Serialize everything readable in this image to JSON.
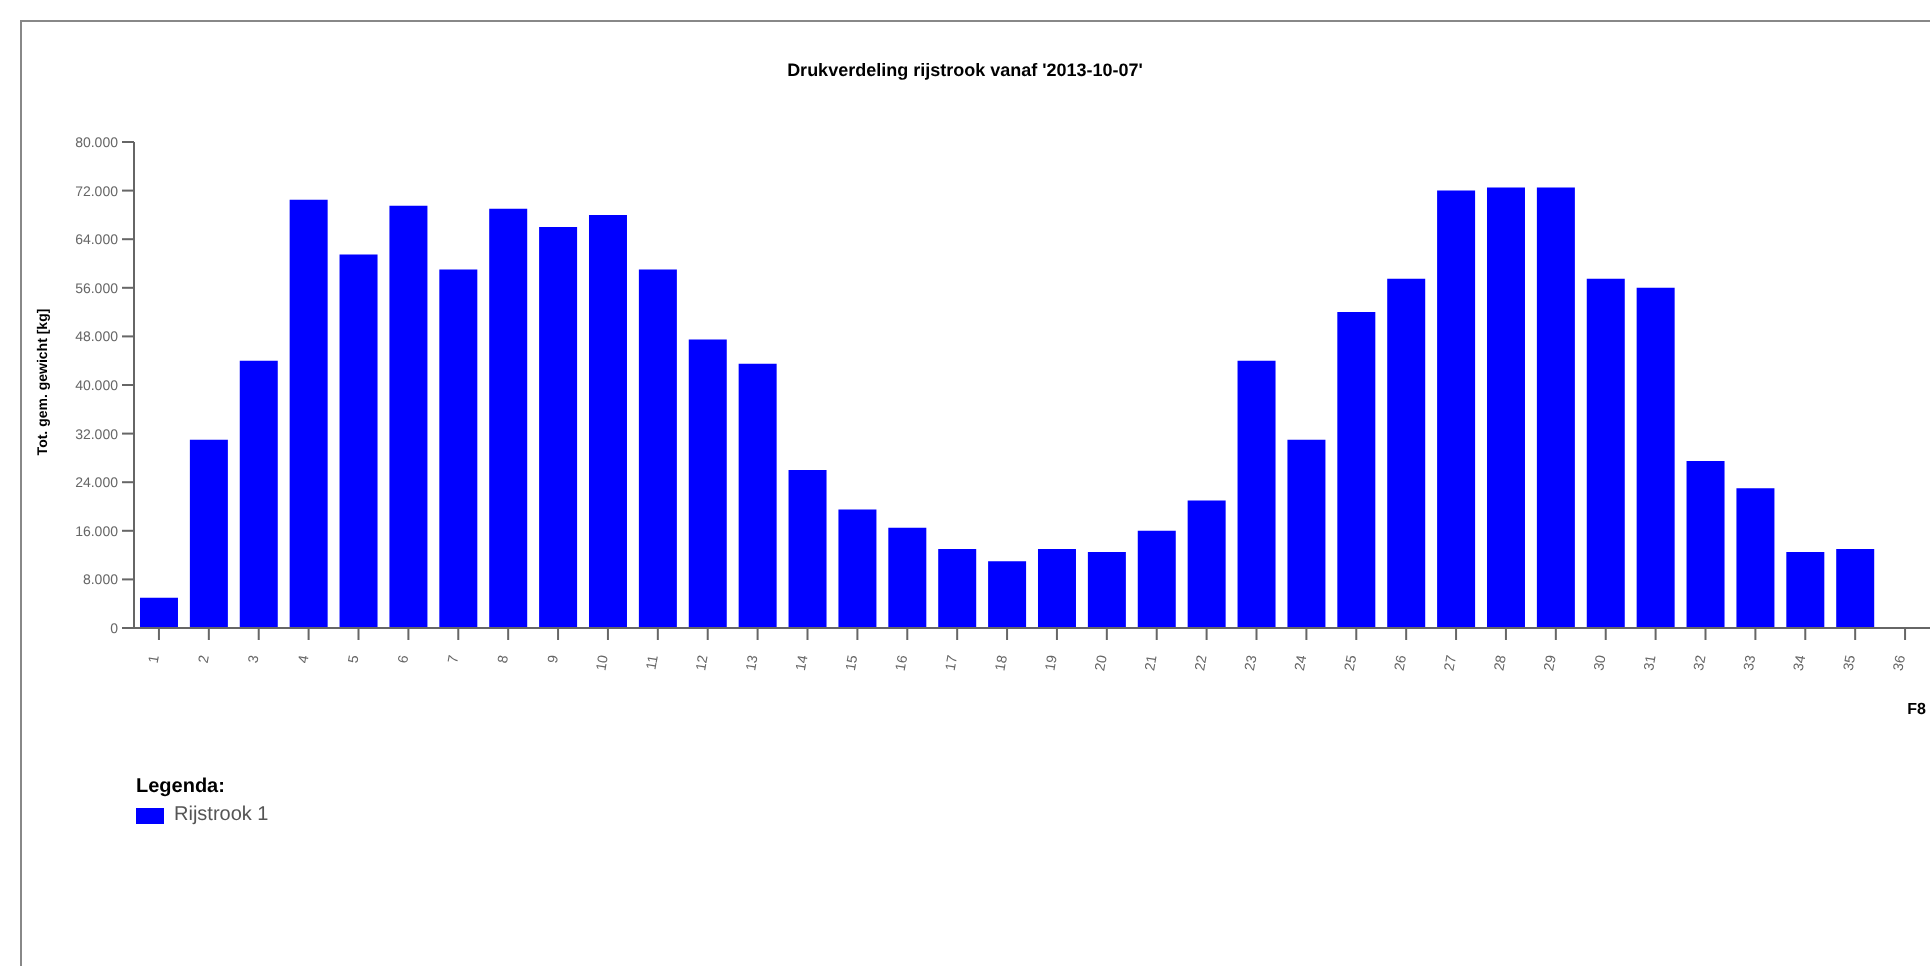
{
  "chart_data": {
    "type": "bar",
    "title": "Drukverdeling rijstrook vanaf '2013-10-07'",
    "ylabel": "Tot. gem. gewicht [kg]",
    "legend_title": "Legenda:",
    "annotations": [
      "F8"
    ],
    "categories": [
      "1",
      "2",
      "3",
      "4",
      "5",
      "6",
      "7",
      "8",
      "9",
      "10",
      "11",
      "12",
      "13",
      "14",
      "15",
      "16",
      "17",
      "18",
      "19",
      "20",
      "21",
      "22",
      "23",
      "24",
      "25",
      "26",
      "27",
      "28",
      "29",
      "30",
      "31",
      "32",
      "33",
      "34",
      "35",
      "36"
    ],
    "series": [
      {
        "name": "Rijstrook 1",
        "color": "#0000ff",
        "values": [
          5000,
          31000,
          44000,
          70500,
          61500,
          69500,
          59000,
          69000,
          66000,
          68000,
          59000,
          47500,
          43500,
          26000,
          19500,
          16500,
          13000,
          11000,
          13000,
          12500,
          16000,
          21000,
          44000,
          31000,
          52000,
          57500,
          72000,
          72500,
          72500,
          57500,
          56000,
          27500,
          23000,
          12500,
          13000,
          null
        ]
      }
    ],
    "ylim": [
      0,
      80000
    ],
    "yticks": [
      {
        "value": 0,
        "label": "0"
      },
      {
        "value": 8000,
        "label": "8.000"
      },
      {
        "value": 16000,
        "label": "16.000"
      },
      {
        "value": 24000,
        "label": "24.000"
      },
      {
        "value": 32000,
        "label": "32.000"
      },
      {
        "value": 40000,
        "label": "40.000"
      },
      {
        "value": 48000,
        "label": "48.000"
      },
      {
        "value": 56000,
        "label": "56.000"
      },
      {
        "value": 64000,
        "label": "64.000"
      },
      {
        "value": 72000,
        "label": "72.000"
      },
      {
        "value": 80000,
        "label": "80.000"
      }
    ],
    "grid": false,
    "legend": "bottom left"
  }
}
